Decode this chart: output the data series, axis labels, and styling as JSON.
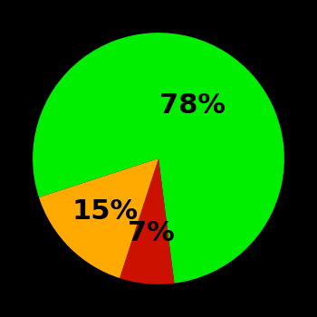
{
  "slices": [
    78,
    7,
    15
  ],
  "labels": [
    "78%",
    "7%",
    "15%"
  ],
  "colors": [
    "#00ee00",
    "#cc1100",
    "#ffaa00"
  ],
  "background_color": "#000000",
  "startangle": 198,
  "label_radii": [
    0.5,
    0.6,
    0.6
  ],
  "label_fontsize": 22,
  "figsize": [
    3.5,
    3.5
  ],
  "dpi": 100
}
